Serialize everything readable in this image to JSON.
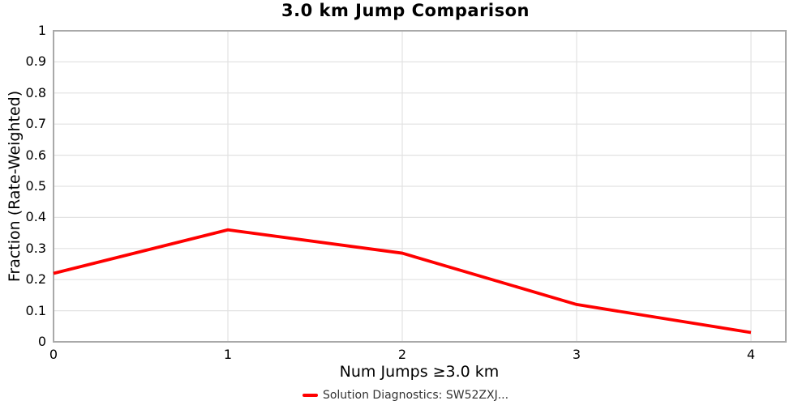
{
  "title": "3.0 km Jump Comparison",
  "colors": {
    "line": "#ff0000",
    "grid": "#e2e2e2",
    "frame": "#a9a9a9",
    "text": "#000000",
    "legend_text": "#333333",
    "background": "#ffffff"
  },
  "legend": {
    "label": "Solution Diagnostics: SW52ZXJ..."
  },
  "chart_data": {
    "type": "line",
    "title": "3.0 km Jump Comparison",
    "xlabel": "Num Jumps ≥3.0 km",
    "ylabel": "Fraction (Rate-Weighted)",
    "x": [
      0,
      1,
      2,
      3,
      4
    ],
    "series": [
      {
        "name": "Solution Diagnostics: SW52ZXJ...",
        "color": "#ff0000",
        "line_width": 3.8,
        "values": [
          0.22,
          0.36,
          0.285,
          0.12,
          0.03
        ]
      }
    ],
    "xlim": [
      0,
      4.2
    ],
    "ylim": [
      0,
      1
    ],
    "x_ticks": {
      "values": [
        0,
        1,
        2,
        3,
        4
      ],
      "labels": [
        "0",
        "1",
        "2",
        "3",
        "4"
      ]
    },
    "y_ticks": {
      "values": [
        0,
        0.1,
        0.2,
        0.3,
        0.4,
        0.5,
        0.6,
        0.7,
        0.8,
        0.9,
        1
      ],
      "labels": [
        "0",
        "0.1",
        "0.2",
        "0.3",
        "0.4",
        "0.5",
        "0.6",
        "0.7",
        "0.8",
        "0.9",
        "1"
      ]
    },
    "grid": true,
    "legend_position": "bottom-center"
  }
}
